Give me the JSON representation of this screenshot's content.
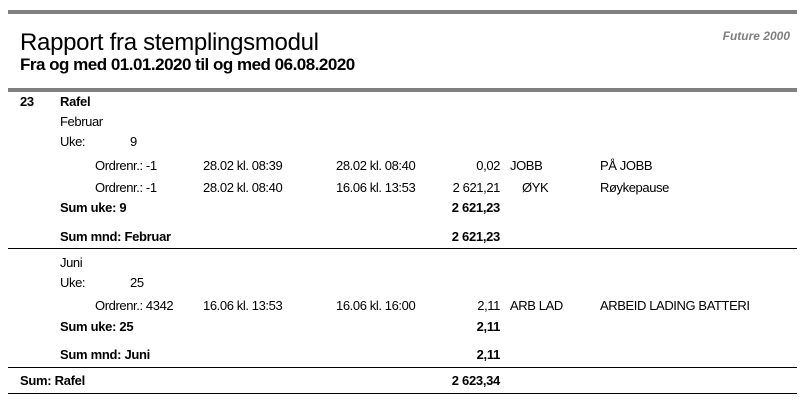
{
  "header": {
    "title": "Rapport fra stemplingsmodul",
    "subtitle": "Fra og med 01.01.2020 til og med 06.08.2020",
    "brand": "Future 2000"
  },
  "employee": {
    "number": "23",
    "name": "Rafel",
    "months": [
      {
        "month": "Februar",
        "week_label": "Uke:",
        "week": "9",
        "rows": [
          {
            "order": "Ordrenr.: -1",
            "from": "28.02 kl. 08:39",
            "to": "28.02 kl. 08:40",
            "hours": "0,02",
            "code": "JOBB",
            "description": "PÅ JOBB"
          },
          {
            "order": "Ordrenr.: -1",
            "from": "28.02 kl. 08:40",
            "to": "16.06 kl. 13:53",
            "hours": "2 621,21",
            "code": "ØYK",
            "description": "Røykepause"
          }
        ],
        "sum_week_label": "Sum uke: 9",
        "sum_week": "2 621,23",
        "sum_month_label": "Sum mnd:  Februar",
        "sum_month": "2 621,23"
      },
      {
        "month": "Juni",
        "week_label": "Uke:",
        "week": "25",
        "rows": [
          {
            "order": "Ordrenr.: 4342",
            "from": "16.06 kl. 13:53",
            "to": "16.06 kl. 16:00",
            "hours": "2,11",
            "code": "ARB LAD",
            "description": "ARBEID LADING BATTERI"
          }
        ],
        "sum_week_label": "Sum uke: 25",
        "sum_week": "2,11",
        "sum_month_label": "Sum mnd:  Juni",
        "sum_month": "2,11"
      }
    ],
    "total_label": "Sum: Rafel",
    "total": "2 623,34"
  }
}
